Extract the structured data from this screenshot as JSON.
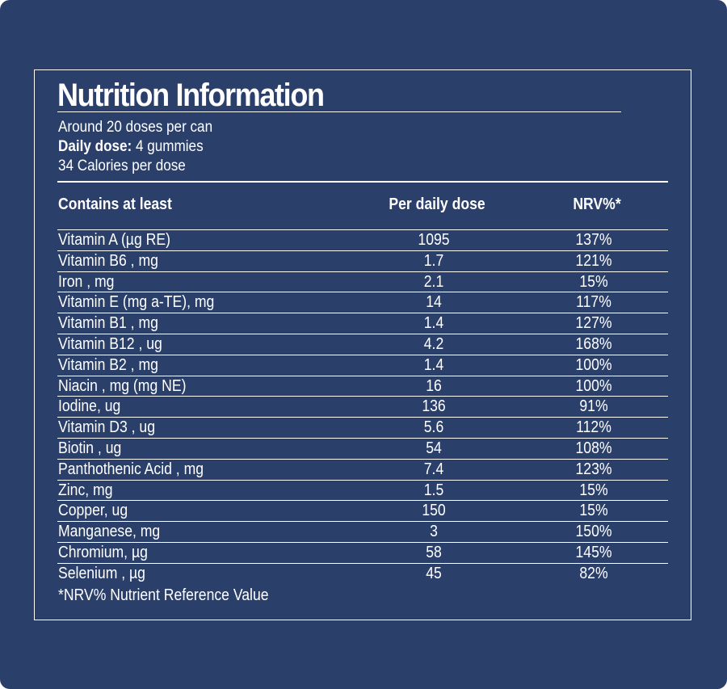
{
  "title": "Nutrition Information",
  "servings": "Around 20 doses per can",
  "daily_dose_label": "Daily dose:",
  "daily_dose_value": " 4 gummies",
  "calories": "34 Calories per dose",
  "headers": {
    "name": "Contains at least",
    "dose": "Per daily dose",
    "nrv": "NRV%*"
  },
  "rows": [
    {
      "name": "Vitamin A (µg RE)",
      "dose": "1095",
      "nrv": "137%"
    },
    {
      "name": "Vitamin B6 , mg",
      "dose": "1.7",
      "nrv": "121%"
    },
    {
      "name": "Iron , mg",
      "dose": "2.1",
      "nrv": "15%"
    },
    {
      "name": "Vitamin E (mg a-TE), mg",
      "dose": "14",
      "nrv": "117%"
    },
    {
      "name": "Vitamin B1  , mg",
      "dose": "1.4",
      "nrv": "127%"
    },
    {
      "name": "Vitamin B12 , ug",
      "dose": "4.2",
      "nrv": "168%"
    },
    {
      "name": "Vitamin B2  , mg",
      "dose": "1.4",
      "nrv": "100%"
    },
    {
      "name": "Niacin , mg (mg NE)",
      "dose": "16",
      "nrv": "100%"
    },
    {
      "name": "Iodine, ug",
      "dose": "136",
      "nrv": "91%"
    },
    {
      "name": "Vitamin D3 , ug",
      "dose": "5.6",
      "nrv": "112%"
    },
    {
      "name": "Biotin  , ug",
      "dose": "54",
      "nrv": "108%"
    },
    {
      "name": "Panthothenic Acid  , mg",
      "dose": "7.4",
      "nrv": "123%"
    },
    {
      "name": "Zinc, mg",
      "dose": "1.5",
      "nrv": "15%"
    },
    {
      "name": "Copper, ug",
      "dose": "150",
      "nrv": "15%"
    },
    {
      "name": "Manganese, mg",
      "dose": "3",
      "nrv": "150%"
    },
    {
      "name": "Chromium, µg",
      "dose": "58",
      "nrv": "145%"
    },
    {
      "name": "Selenium , µg",
      "dose": "45",
      "nrv": "82%"
    }
  ],
  "footnote": "*NRV% Nutrient Reference Value",
  "colors": {
    "background": "#2b3f6b",
    "text": "#ffffff"
  }
}
